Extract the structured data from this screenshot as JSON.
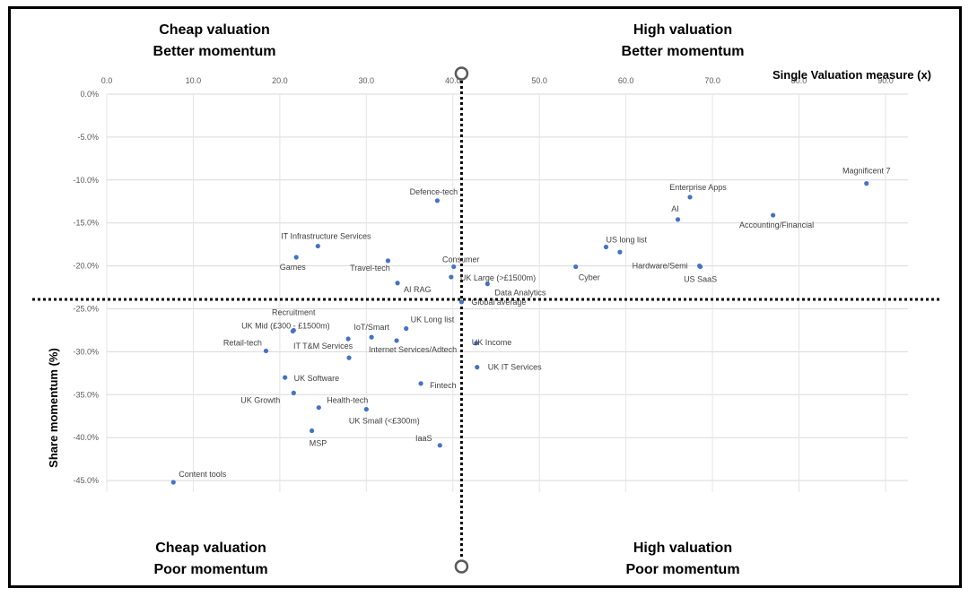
{
  "quadrants": {
    "top_left": [
      "Cheap valuation",
      "Better momentum"
    ],
    "top_right": [
      "High valuation",
      "Better momentum"
    ],
    "bottom_left": [
      "Cheap valuation",
      "Poor momentum"
    ],
    "bottom_right": [
      "High valuation",
      "Poor momentum"
    ]
  },
  "chart_data": {
    "type": "scatter",
    "title": "",
    "xlabel": "Single Valuation measure (x)",
    "ylabel": "Share momentum (%)",
    "xlim": [
      0,
      92
    ],
    "ylim": [
      -46,
      0
    ],
    "x_ticks": [
      0,
      10,
      20,
      30,
      40,
      50,
      60,
      70,
      80,
      90
    ],
    "x_tick_labels": [
      "0.0",
      "10.0",
      "20.0",
      "30.0",
      "40.0",
      "50.0",
      "60.0",
      "70.0",
      "80.0",
      "90.0"
    ],
    "y_ticks": [
      0,
      -5,
      -10,
      -15,
      -20,
      -25,
      -30,
      -35,
      -40,
      -45
    ],
    "y_tick_labels": [
      "0.0%",
      "-5.0%",
      "-10.0%",
      "-15.0%",
      "-20.0%",
      "-25.0%",
      "-30.0%",
      "-35.0%",
      "-40.0%",
      "-45.0%"
    ],
    "grid": true,
    "point_color": "#4472C4",
    "divider_x": 41.0,
    "divider_y": -23.9,
    "points": [
      {
        "name": "Magnificent 7",
        "x": 87.8,
        "y": -10.4
      },
      {
        "name": "Enterprise Apps",
        "x": 67.4,
        "y": -12.0
      },
      {
        "name": "AI",
        "x": 66.0,
        "y": -14.6
      },
      {
        "name": "Accounting/Financial",
        "x": 77.0,
        "y": -14.1
      },
      {
        "name": "US long list",
        "x": 57.7,
        "y": -17.8
      },
      {
        "name": "",
        "x": 59.3,
        "y": -18.4
      },
      {
        "name": "Cyber",
        "x": 54.2,
        "y": -20.1
      },
      {
        "name": "Hardware/Semi",
        "x": 68.5,
        "y": -20.0
      },
      {
        "name": "US SaaS",
        "x": 68.6,
        "y": -20.1
      },
      {
        "name": "Defence-tech",
        "x": 38.2,
        "y": -12.4
      },
      {
        "name": "IT Infrastructure Services",
        "x": 24.4,
        "y": -17.7
      },
      {
        "name": "Games",
        "x": 21.9,
        "y": -19.0
      },
      {
        "name": "Travel-tech",
        "x": 32.5,
        "y": -19.4
      },
      {
        "name": "Consumer",
        "x": 40.1,
        "y": -20.1
      },
      {
        "name": "UK Large (>£1500m)",
        "x": 39.8,
        "y": -21.3
      },
      {
        "name": "Data Analytics",
        "x": 44.0,
        "y": -22.1
      },
      {
        "name": "AI RAG",
        "x": 33.6,
        "y": -22.0
      },
      {
        "name": "Global average",
        "x": 41.0,
        "y": -24.2
      },
      {
        "name": "Recruitment",
        "x": 21.6,
        "y": -27.5
      },
      {
        "name": "UK Mid (£300 - £1500m)",
        "x": 21.5,
        "y": -27.6
      },
      {
        "name": "IT T&M Services",
        "x": 28.0,
        "y": -30.7
      },
      {
        "name": "",
        "x": 27.9,
        "y": -28.5
      },
      {
        "name": "IoT/Smart",
        "x": 30.6,
        "y": -28.3
      },
      {
        "name": "Internet Services/Adtech",
        "x": 33.5,
        "y": -28.7
      },
      {
        "name": "UK Long list",
        "x": 34.6,
        "y": -27.3
      },
      {
        "name": "Retail-tech",
        "x": 18.4,
        "y": -29.9
      },
      {
        "name": "UK Income",
        "x": 42.7,
        "y": -29.0
      },
      {
        "name": "UK IT Services",
        "x": 42.8,
        "y": -31.8
      },
      {
        "name": "UK Software",
        "x": 20.6,
        "y": -33.0
      },
      {
        "name": "UK Growth",
        "x": 21.6,
        "y": -34.8
      },
      {
        "name": "Health-tech",
        "x": 24.5,
        "y": -36.5
      },
      {
        "name": "UK Small (<£300m)",
        "x": 30.0,
        "y": -36.7
      },
      {
        "name": "Fintech",
        "x": 36.3,
        "y": -33.7
      },
      {
        "name": "MSP",
        "x": 23.7,
        "y": -39.2
      },
      {
        "name": "IaaS",
        "x": 38.5,
        "y": -40.9
      },
      {
        "name": "Content tools",
        "x": 7.7,
        "y": -45.2
      }
    ]
  }
}
